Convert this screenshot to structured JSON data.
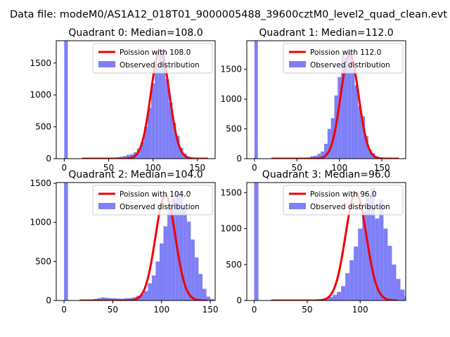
{
  "figure": {
    "title": "Data file: modeM0/AS1A12_018T01_9000005488_39600cztM0_level2_quad_clean.evt"
  },
  "legend_labels": {
    "line_prefix": "Poission with",
    "hist": "Observed distribution"
  },
  "colors": {
    "hist": "#7f7ff7",
    "poisson": "#f00000",
    "axis": "#000000"
  },
  "chart_data": [
    {
      "type": "bar",
      "title": "Quadrant 0: Median=108.0",
      "median": 108.0,
      "legend": "upper right",
      "xlim": [
        -9,
        170
      ],
      "ylim": [
        0,
        1850
      ],
      "xticks": [
        0,
        50,
        100,
        150
      ],
      "yticks": [
        0,
        500,
        1000,
        1500
      ],
      "bin_width": 4,
      "spike": {
        "x": 0,
        "value": 1850
      },
      "bins_start": 30,
      "bin_counts": [
        3,
        5,
        3,
        5,
        5,
        4,
        5,
        20,
        30,
        40,
        60,
        70,
        100,
        160,
        260,
        500,
        800,
        1180,
        1500,
        1640,
        1700,
        1250,
        880,
        560,
        360,
        170,
        80,
        30,
        15,
        5,
        2,
        0
      ],
      "poisson_amplitude": 1700
    },
    {
      "type": "bar",
      "title": "Quadrant 1: Median=112.0",
      "median": 112.0,
      "legend": "upper right",
      "xlim": [
        -9,
        178
      ],
      "ylim": [
        0,
        1980
      ],
      "xticks": [
        0,
        50,
        100,
        150
      ],
      "yticks": [
        0,
        500,
        1000,
        1500
      ],
      "bin_width": 4,
      "spike": {
        "x": 0,
        "value": 1980
      },
      "bins_start": 30,
      "bin_counts": [
        3,
        4,
        4,
        5,
        5,
        5,
        6,
        10,
        20,
        40,
        50,
        80,
        120,
        250,
        500,
        680,
        1060,
        1370,
        1760,
        1700,
        1830,
        1520,
        1230,
        880,
        710,
        380,
        150,
        90,
        40,
        20,
        8,
        3,
        1,
        0,
        0,
        0
      ],
      "poisson_amplitude": 1750
    },
    {
      "type": "bar",
      "title": "Quadrant 2: Median=104.0",
      "median": 104.0,
      "legend": "upper right",
      "xlim": [
        -8,
        155
      ],
      "ylim": [
        0,
        1510
      ],
      "xticks": [
        0,
        50,
        100,
        150
      ],
      "yticks": [
        0,
        500,
        1000,
        1500
      ],
      "bin_width": 4,
      "spike": {
        "x": 0,
        "value": 1510
      },
      "bins_start": 26,
      "bin_counts": [
        12,
        20,
        30,
        40,
        35,
        30,
        28,
        24,
        22,
        30,
        30,
        40,
        60,
        80,
        120,
        220,
        320,
        500,
        730,
        950,
        1220,
        1300,
        1380,
        1350,
        1180,
        1010,
        780,
        550,
        340,
        150,
        50,
        20,
        5,
        2,
        0
      ],
      "poisson_amplitude": 1350
    },
    {
      "type": "bar",
      "title": "Quadrant 3: Median=96.0",
      "median": 96.0,
      "legend": "upper right",
      "xlim": [
        -7,
        143
      ],
      "ylim": [
        0,
        1640
      ],
      "xticks": [
        0,
        50,
        100
      ],
      "yticks": [
        0,
        500,
        1000,
        1500
      ],
      "bin_width": 4,
      "spike": {
        "x": 0,
        "value": 1640
      },
      "bins_start": 26,
      "bin_counts": [
        3,
        4,
        4,
        5,
        5,
        6,
        8,
        10,
        15,
        20,
        30,
        50,
        80,
        120,
        200,
        380,
        560,
        750,
        1000,
        1240,
        1440,
        1560,
        1140,
        1400,
        1000,
        760,
        500,
        300,
        150,
        60,
        20,
        5,
        2
      ],
      "poisson_amplitude": 1500
    }
  ]
}
